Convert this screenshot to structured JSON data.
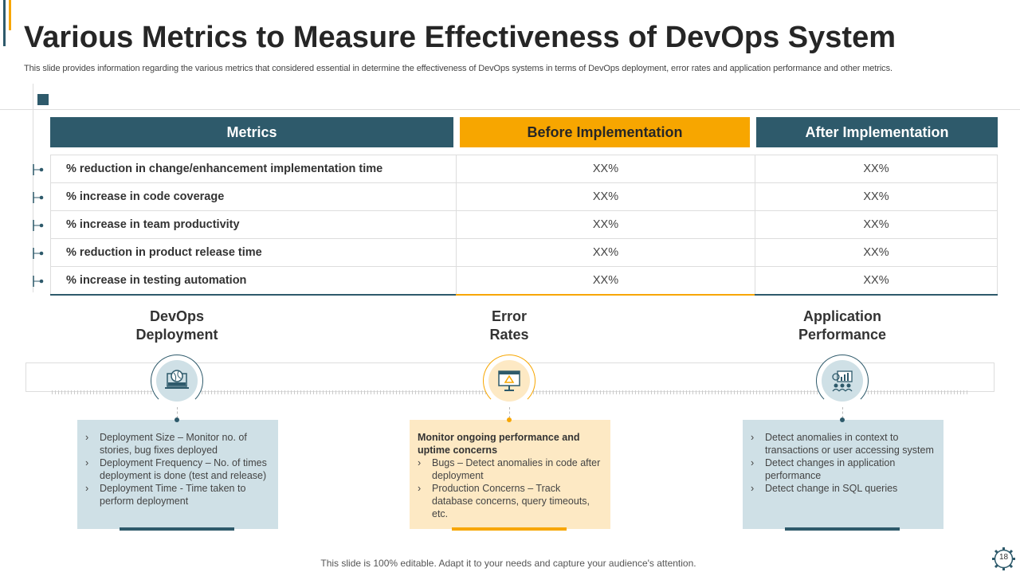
{
  "title": "Various Metrics to Measure Effectiveness of DevOps System",
  "subtitle": "This slide provides information regarding the various metrics that considered essential in determine the effectiveness of DevOps systems in terms of DevOps deployment, error rates and application performance and other metrics.",
  "colors": {
    "teal": "#2e5a6b",
    "orange": "#f7a600",
    "light_blue": "#cfe0e6",
    "light_orange": "#fde9c4"
  },
  "table": {
    "headers": [
      "Metrics",
      "Before Implementation",
      "After Implementation"
    ],
    "rows": [
      {
        "metric": "% reduction in change/enhancement implementation time",
        "before": "XX%",
        "after": "XX%"
      },
      {
        "metric": "% increase in code coverage",
        "before": "XX%",
        "after": "XX%"
      },
      {
        "metric": "% increase in team productivity",
        "before": "XX%",
        "after": "XX%"
      },
      {
        "metric": "% reduction in product release time",
        "before": "XX%",
        "after": "XX%"
      },
      {
        "metric": "% increase in testing automation",
        "before": "XX%",
        "after": "XX%"
      }
    ]
  },
  "sections": [
    {
      "title1": "DevOps",
      "title2": "Deployment",
      "icon": "laptop-deploy-icon",
      "intro": "",
      "items": [
        "Deployment Size – Monitor no. of stories, bug fixes deployed",
        "Deployment Frequency – No. of times deployment is done (test and release)",
        "Deployment Time - Time taken to perform deployment"
      ]
    },
    {
      "title1": "Error",
      "title2": "Rates",
      "icon": "monitor-warning-icon",
      "intro": "Monitor ongoing performance and uptime concerns",
      "items": [
        "Bugs – Detect anomalies in code after deployment",
        "Production Concerns – Track database concerns, query timeouts, etc."
      ]
    },
    {
      "title1": "Application",
      "title2": "Performance",
      "icon": "analytics-team-icon",
      "intro": "",
      "items": [
        "Detect anomalies in context to transactions or user accessing system",
        "Detect changes in application performance",
        "Detect change in SQL queries"
      ]
    }
  ],
  "footer": "This slide is 100% editable. Adapt it to your needs and capture your audience's attention.",
  "page_number": "18"
}
